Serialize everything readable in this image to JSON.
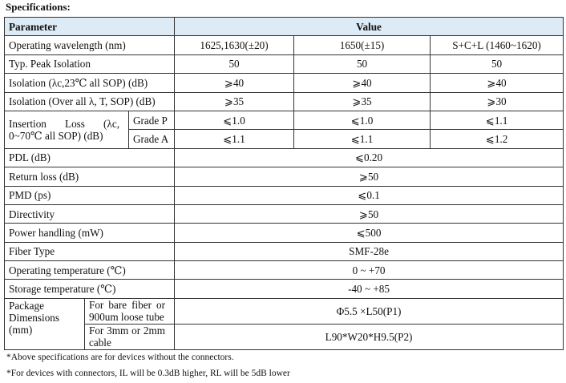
{
  "title": "Specifications:",
  "header": {
    "parameter": "Parameter",
    "value": "Value"
  },
  "rows": {
    "wavelength": {
      "label": "Operating wavelength (nm)",
      "v1": "1625,1630(±20)",
      "v2": "1650(±15)",
      "v3": "S+C+L (1460~1620)"
    },
    "peak_isolation": {
      "label": "Typ. Peak Isolation",
      "v1": "50",
      "v2": "50",
      "v3": "50"
    },
    "isolation_sop": {
      "label": "Isolation (λc,23℃ all SOP) (dB)",
      "v1": "⩾40",
      "v2": "⩾40",
      "v3": "⩾40"
    },
    "isolation_over": {
      "label": "Isolation (Over all λ, T, SOP) (dB)",
      "v1": "⩾35",
      "v2": "⩾35",
      "v3": "⩾30"
    },
    "insertion_loss": {
      "label_line1": "Insertion Loss (λc,",
      "label_line2": "0~70℃ all SOP) (dB)",
      "grade_p": {
        "label": "Grade P",
        "v1": "⩽1.0",
        "v2": "⩽1.0",
        "v3": "⩽1.1"
      },
      "grade_a": {
        "label": "Grade A",
        "v1": "⩽1.1",
        "v2": "⩽1.1",
        "v3": "⩽1.2"
      }
    },
    "pdl": {
      "label": "PDL (dB)",
      "value": "⩽0.20"
    },
    "return_loss": {
      "label": "Return loss (dB)",
      "value": "⩾50"
    },
    "pmd": {
      "label": "PMD (ps)",
      "value": "⩽0.1"
    },
    "directivity": {
      "label": "Directivity",
      "value": "⩾50"
    },
    "power": {
      "label": "Power handling (mW)",
      "value": "⩽500"
    },
    "fiber": {
      "label": "Fiber Type",
      "value": "SMF-28e"
    },
    "op_temp": {
      "label": "Operating temperature (℃)",
      "value": "0 ~ +70"
    },
    "st_temp": {
      "label": "Storage temperature (℃)",
      "value": "-40 ~ +85"
    },
    "package": {
      "label_line1": "Package",
      "label_line2": "Dimensions",
      "label_line3": "(mm)",
      "bare": {
        "line1": "For bare fiber or",
        "line2": "900um loose tube",
        "value": "Φ5.5 ×L50(P1)"
      },
      "cable": {
        "line1": "For 3mm or 2mm",
        "line2": "cable",
        "value": "L90*W20*H9.5(P2)"
      }
    }
  },
  "notes": {
    "n1": "*Above specifications are for devices without the connectors.",
    "n2": "*For devices with connectors, IL will be 0.3dB higher, RL will be 5dB lower"
  }
}
